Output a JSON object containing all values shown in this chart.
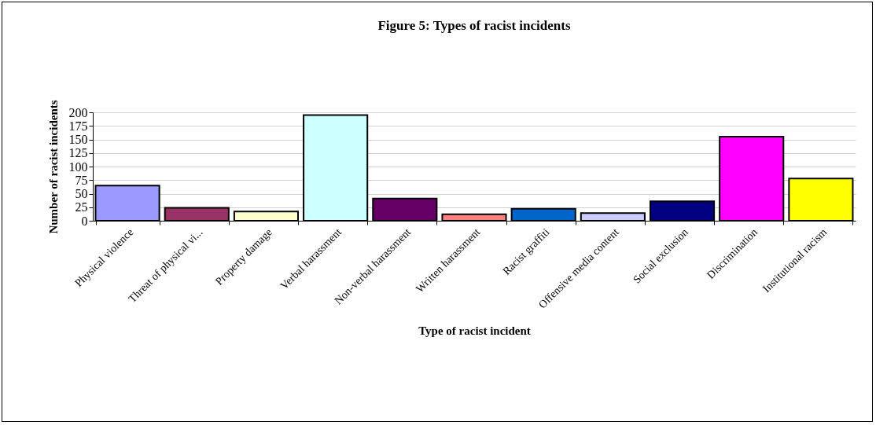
{
  "chart_data": {
    "type": "bar",
    "title": "Figure 5: Types of racist incidents",
    "xlabel": "Type of racist incident",
    "ylabel": "Number of racist incidents",
    "categories": [
      "Physical violence",
      "Threat of physical vi...",
      "Property damage",
      "Verbal harassment",
      "Non-verbal harassment",
      "Written harassment",
      "Racist graffiti",
      "Offensive media content",
      "Social exclusion",
      "Discrimination",
      "Institutional racism"
    ],
    "values": [
      65,
      24,
      17,
      195,
      41,
      12,
      22,
      14,
      36,
      155,
      78
    ],
    "colors": [
      "#9999ff",
      "#993366",
      "#ffffcc",
      "#ccffff",
      "#660066",
      "#ff8080",
      "#0066cc",
      "#ccccff",
      "#000080",
      "#ff00ff",
      "#ffff00"
    ],
    "ylim": [
      0,
      200
    ],
    "yticks": [
      0,
      25,
      50,
      75,
      100,
      125,
      150,
      175,
      200
    ],
    "grid": "y",
    "legend": false
  }
}
